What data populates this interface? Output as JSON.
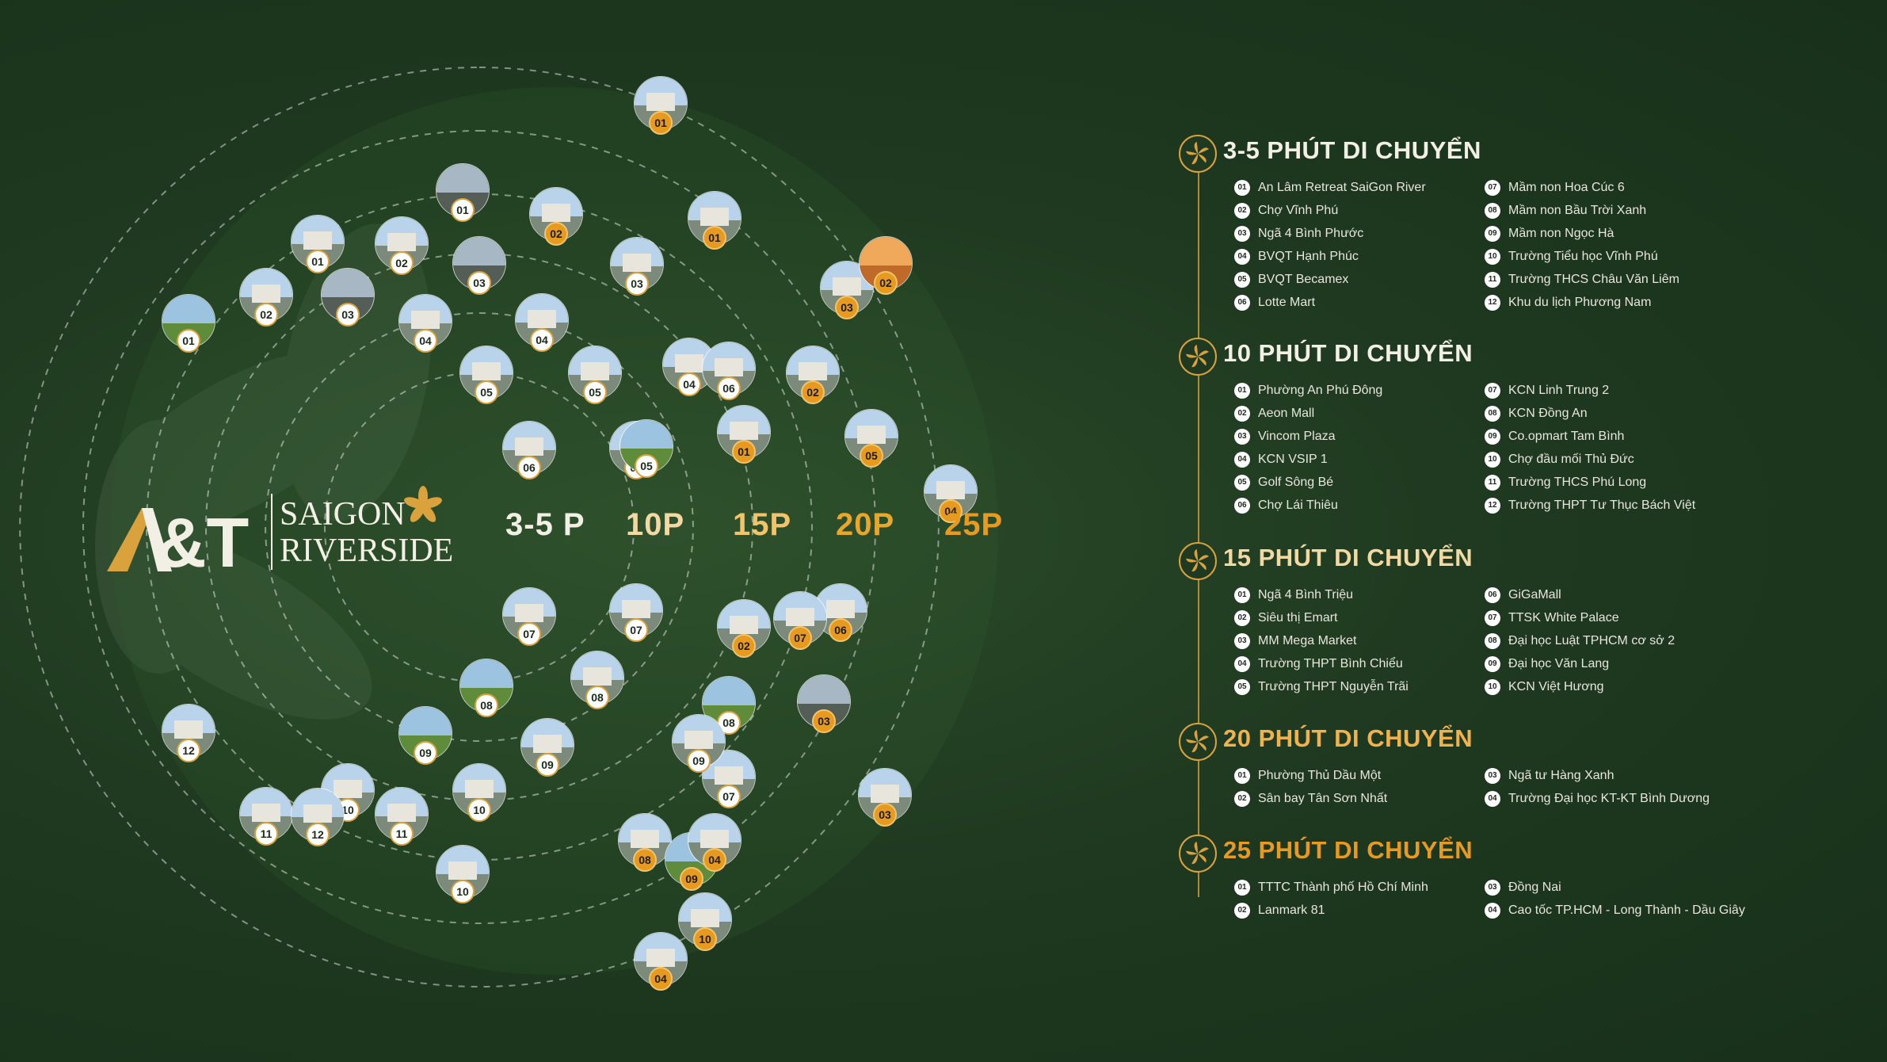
{
  "colors": {
    "background": "#1f3a20",
    "gold": "#d9a23c",
    "orange": "#e69a1f",
    "cream": "#f2efe4",
    "text": "#e8e6dc"
  },
  "brand": {
    "line1": "SAIGON",
    "line2": "RIVERSIDE",
    "mark_text": "A&T",
    "icon": "lotus-flower-icon"
  },
  "rings": [
    {
      "label": "3-5 P",
      "color": "#f2efe4"
    },
    {
      "label": "10P",
      "color": "#f2d9a3"
    },
    {
      "label": "15P",
      "color": "#f2c36a"
    },
    {
      "label": "20P",
      "color": "#e9a72a"
    },
    {
      "label": "25P",
      "color": "#e69a1f"
    }
  ],
  "markers": [
    {
      "n": "01",
      "tone": "white",
      "photo": "park"
    },
    {
      "n": "02",
      "tone": "white",
      "photo": "building"
    },
    {
      "n": "03",
      "tone": "white",
      "photo": "road"
    },
    {
      "n": "04",
      "tone": "white",
      "photo": "building"
    },
    {
      "n": "05",
      "tone": "white",
      "photo": "building"
    },
    {
      "n": "06",
      "tone": "white",
      "photo": "building"
    },
    {
      "n": "07",
      "tone": "white",
      "photo": "building"
    },
    {
      "n": "08",
      "tone": "white",
      "photo": "park"
    },
    {
      "n": "09",
      "tone": "white",
      "photo": "park"
    },
    {
      "n": "10",
      "tone": "white",
      "photo": "building"
    },
    {
      "n": "11",
      "tone": "white",
      "photo": "building"
    },
    {
      "n": "12",
      "tone": "white",
      "photo": "building"
    },
    {
      "n": "01",
      "tone": "white",
      "photo": "building"
    },
    {
      "n": "02",
      "tone": "white",
      "photo": "building"
    },
    {
      "n": "03",
      "tone": "white",
      "photo": "road"
    },
    {
      "n": "04",
      "tone": "white",
      "photo": "building"
    },
    {
      "n": "05",
      "tone": "white",
      "photo": "building"
    },
    {
      "n": "06",
      "tone": "white",
      "photo": "building"
    },
    {
      "n": "07",
      "tone": "white",
      "photo": "building"
    },
    {
      "n": "08",
      "tone": "white",
      "photo": "building"
    },
    {
      "n": "09",
      "tone": "white",
      "photo": "building"
    },
    {
      "n": "10",
      "tone": "white",
      "photo": "building"
    },
    {
      "n": "11",
      "tone": "white",
      "photo": "building"
    },
    {
      "n": "12",
      "tone": "white",
      "photo": "building"
    },
    {
      "n": "01",
      "tone": "white",
      "photo": "road"
    },
    {
      "n": "02",
      "tone": "orange",
      "photo": "building"
    },
    {
      "n": "03",
      "tone": "white",
      "photo": "building"
    },
    {
      "n": "04",
      "tone": "white",
      "photo": "building"
    },
    {
      "n": "05",
      "tone": "white",
      "photo": "park"
    },
    {
      "n": "06",
      "tone": "white",
      "photo": "building"
    },
    {
      "n": "07",
      "tone": "white",
      "photo": "building"
    },
    {
      "n": "08",
      "tone": "white",
      "photo": "park"
    },
    {
      "n": "09",
      "tone": "white",
      "photo": "building"
    },
    {
      "n": "10",
      "tone": "white",
      "photo": "building"
    },
    {
      "n": "01",
      "tone": "orange",
      "photo": "building"
    },
    {
      "n": "02",
      "tone": "orange",
      "photo": "building"
    },
    {
      "n": "03",
      "tone": "orange",
      "photo": "building"
    },
    {
      "n": "04",
      "tone": "orange",
      "photo": "building"
    },
    {
      "n": "05",
      "tone": "orange",
      "photo": "building"
    },
    {
      "n": "06",
      "tone": "orange",
      "photo": "building"
    },
    {
      "n": "07",
      "tone": "orange",
      "photo": "building"
    },
    {
      "n": "08",
      "tone": "orange",
      "photo": "building"
    },
    {
      "n": "09",
      "tone": "orange",
      "photo": "park"
    },
    {
      "n": "10",
      "tone": "orange",
      "photo": "building"
    },
    {
      "n": "01",
      "tone": "orange",
      "photo": "building"
    },
    {
      "n": "02",
      "tone": "orange",
      "photo": "building"
    },
    {
      "n": "03",
      "tone": "orange",
      "photo": "road"
    },
    {
      "n": "04",
      "tone": "orange",
      "photo": "building"
    },
    {
      "n": "01",
      "tone": "orange",
      "photo": "building"
    },
    {
      "n": "02",
      "tone": "orange",
      "photo": "sunset"
    },
    {
      "n": "03",
      "tone": "orange",
      "photo": "building"
    },
    {
      "n": "04",
      "tone": "orange",
      "photo": "building"
    }
  ],
  "sections": [
    {
      "title": "3-5 PHÚT DI CHUYỂN",
      "title_color": "#f2efe4",
      "left": [
        {
          "n": "01",
          "label": "An Lâm Retreat SaiGon River"
        },
        {
          "n": "02",
          "label": "Chợ Vĩnh Phú"
        },
        {
          "n": "03",
          "label": "Ngã 4 Bình Phước"
        },
        {
          "n": "04",
          "label": "BVQT Hạnh Phúc"
        },
        {
          "n": "05",
          "label": "BVQT Becamex"
        },
        {
          "n": "06",
          "label": "Lotte Mart"
        }
      ],
      "right": [
        {
          "n": "07",
          "label": "Mầm non Hoa Cúc 6"
        },
        {
          "n": "08",
          "label": "Mầm non Bầu Trời Xanh"
        },
        {
          "n": "09",
          "label": "Mầm non Ngọc Hà"
        },
        {
          "n": "10",
          "label": "Trường Tiểu học Vĩnh Phú"
        },
        {
          "n": "11",
          "label": "Trường THCS Châu Văn Liêm"
        },
        {
          "n": "12",
          "label": "Khu du lịch Phương Nam"
        }
      ]
    },
    {
      "title": "10 PHÚT DI CHUYỂN",
      "title_color": "#f2efe4",
      "left": [
        {
          "n": "01",
          "label": "Phường An Phú Đông"
        },
        {
          "n": "02",
          "label": "Aeon Mall"
        },
        {
          "n": "03",
          "label": "Vincom Plaza"
        },
        {
          "n": "04",
          "label": "KCN VSIP 1"
        },
        {
          "n": "05",
          "label": "Golf Sông Bé"
        },
        {
          "n": "06",
          "label": "Chợ Lái Thiêu"
        }
      ],
      "right": [
        {
          "n": "07",
          "label": "KCN Linh Trung 2"
        },
        {
          "n": "08",
          "label": "KCN Đồng An"
        },
        {
          "n": "09",
          "label": "Co.opmart Tam Bình"
        },
        {
          "n": "10",
          "label": "Chợ đầu mối Thủ Đức"
        },
        {
          "n": "11",
          "label": "Trường THCS Phú Long"
        },
        {
          "n": "12",
          "label": "Trường THPT Tư Thục Bách Việt"
        }
      ]
    },
    {
      "title": "15 PHÚT DI CHUYỂN",
      "title_color": "#f2d9a3",
      "left": [
        {
          "n": "01",
          "label": "Ngã 4 Bình Triệu"
        },
        {
          "n": "02",
          "label": "Siêu thị Emart"
        },
        {
          "n": "03",
          "label": "MM Mega Market"
        },
        {
          "n": "04",
          "label": "Trường THPT Bình Chiểu"
        },
        {
          "n": "05",
          "label": "Trường THPT Nguyễn Trãi"
        }
      ],
      "right": [
        {
          "n": "06",
          "label": "GiGaMall"
        },
        {
          "n": "07",
          "label": "TTSK White Palace"
        },
        {
          "n": "08",
          "label": "Đại học Luật TPHCM cơ sở 2"
        },
        {
          "n": "09",
          "label": "Đại học Văn Lang"
        },
        {
          "n": "10",
          "label": "KCN Việt Hương"
        }
      ]
    },
    {
      "title": "20 PHÚT DI CHUYỂN",
      "title_color": "#f0b24a",
      "left": [
        {
          "n": "01",
          "label": "Phường Thủ Dầu Một"
        },
        {
          "n": "02",
          "label": "Sân bay Tân Sơn Nhất"
        }
      ],
      "right": [
        {
          "n": "03",
          "label": "Ngã tư Hàng Xanh"
        },
        {
          "n": "04",
          "label": "Trường Đại học KT-KT  Bình Dương"
        }
      ]
    },
    {
      "title": "25 PHÚT DI CHUYỂN",
      "title_color": "#e69a1f",
      "left": [
        {
          "n": "01",
          "label": "TTTC Thành phố Hồ Chí Minh"
        },
        {
          "n": "02",
          "label": "Lanmark 81"
        }
      ],
      "right": [
        {
          "n": "03",
          "label": "Đồng Nai"
        },
        {
          "n": "04",
          "label": "Cao tốc TP.HCM - Long Thành - Dầu Giây"
        }
      ]
    }
  ]
}
